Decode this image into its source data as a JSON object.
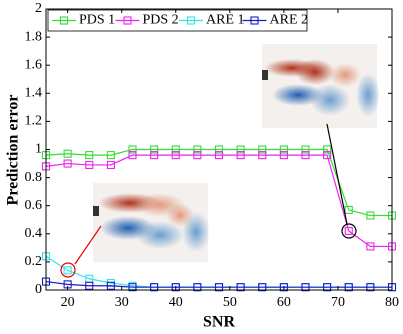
{
  "chart_data": {
    "type": "line",
    "xlabel": "SNR",
    "ylabel": "Prediction error",
    "x": [
      16,
      20,
      24,
      28,
      32,
      36,
      40,
      44,
      48,
      52,
      56,
      60,
      64,
      68,
      72,
      76,
      80
    ],
    "series": [
      {
        "name": "PDS 1",
        "color": "#33dd33",
        "values": [
          0.96,
          0.97,
          0.96,
          0.96,
          1.0,
          1.0,
          1.0,
          1.0,
          1.0,
          1.0,
          1.0,
          1.0,
          1.0,
          1.0,
          0.57,
          0.53,
          0.53
        ]
      },
      {
        "name": "PDS 2",
        "color": "#ee22ee",
        "values": [
          0.88,
          0.9,
          0.89,
          0.89,
          0.96,
          0.96,
          0.96,
          0.96,
          0.96,
          0.96,
          0.96,
          0.96,
          0.96,
          0.96,
          0.42,
          0.31,
          0.31
        ]
      },
      {
        "name": "ARE 1",
        "color": "#33e6e6",
        "values": [
          0.24,
          0.14,
          0.08,
          0.05,
          0.03,
          0.02,
          0.02,
          0.02,
          0.02,
          0.02,
          0.02,
          0.02,
          0.02,
          0.02,
          0.02,
          0.02,
          0.02
        ]
      },
      {
        "name": "ARE 2",
        "color": "#1a1acc",
        "values": [
          0.06,
          0.04,
          0.03,
          0.03,
          0.02,
          0.02,
          0.02,
          0.02,
          0.02,
          0.02,
          0.02,
          0.02,
          0.02,
          0.02,
          0.02,
          0.02,
          0.02
        ]
      }
    ],
    "xlim": [
      16,
      80
    ],
    "xticks": [
      20,
      30,
      40,
      50,
      60,
      70,
      80
    ],
    "ylim": [
      0,
      2
    ],
    "yticks": [
      0,
      0.2,
      0.4,
      0.6,
      0.8,
      1,
      1.2,
      1.4,
      1.6,
      1.8,
      2
    ],
    "grid": false,
    "legend": "top-left"
  }
}
